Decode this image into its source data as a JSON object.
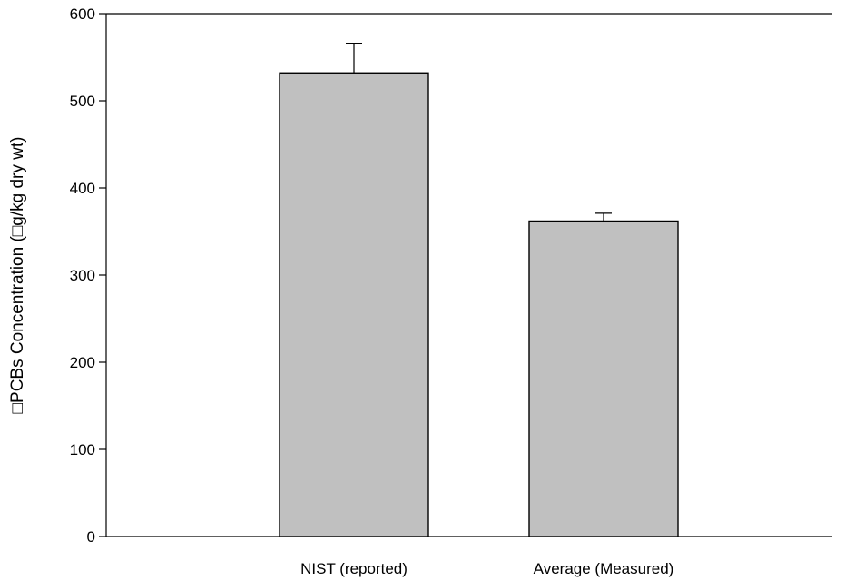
{
  "chart_data": {
    "type": "bar",
    "categories": [
      "NIST (reported)",
      "Average (Measured)"
    ],
    "values": [
      532,
      362
    ],
    "error_bars": [
      34,
      9
    ],
    "ylabel": "□PCBs Concentration (□g/kg dry wt)",
    "xlabel": "",
    "ylim": [
      0,
      600
    ],
    "y_ticks": [
      0,
      100,
      200,
      300,
      400,
      500,
      600
    ],
    "grid": false,
    "bar_color": "#c0c0c0",
    "outline_color": "#000000"
  }
}
